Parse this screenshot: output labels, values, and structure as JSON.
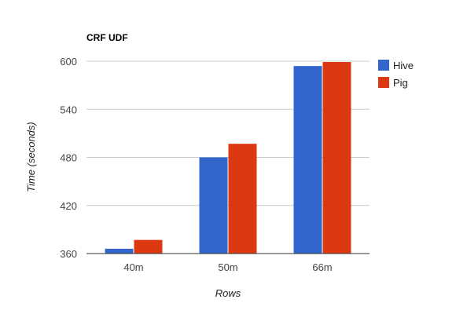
{
  "chart_data": {
    "type": "bar",
    "title": "CRF UDF",
    "xlabel": "Rows",
    "ylabel": "Time (seconds)",
    "categories": [
      "40m",
      "50m",
      "66m"
    ],
    "series": [
      {
        "name": "Hive",
        "values": [
          366,
          480,
          594
        ],
        "color": "#3366cc"
      },
      {
        "name": "Pig",
        "values": [
          377,
          497,
          599
        ],
        "color": "#dc3912"
      }
    ],
    "ylim": [
      360,
      600
    ],
    "yticks": [
      "360",
      "420",
      "480",
      "540",
      "600"
    ],
    "grid": true,
    "legend_position": "right"
  }
}
